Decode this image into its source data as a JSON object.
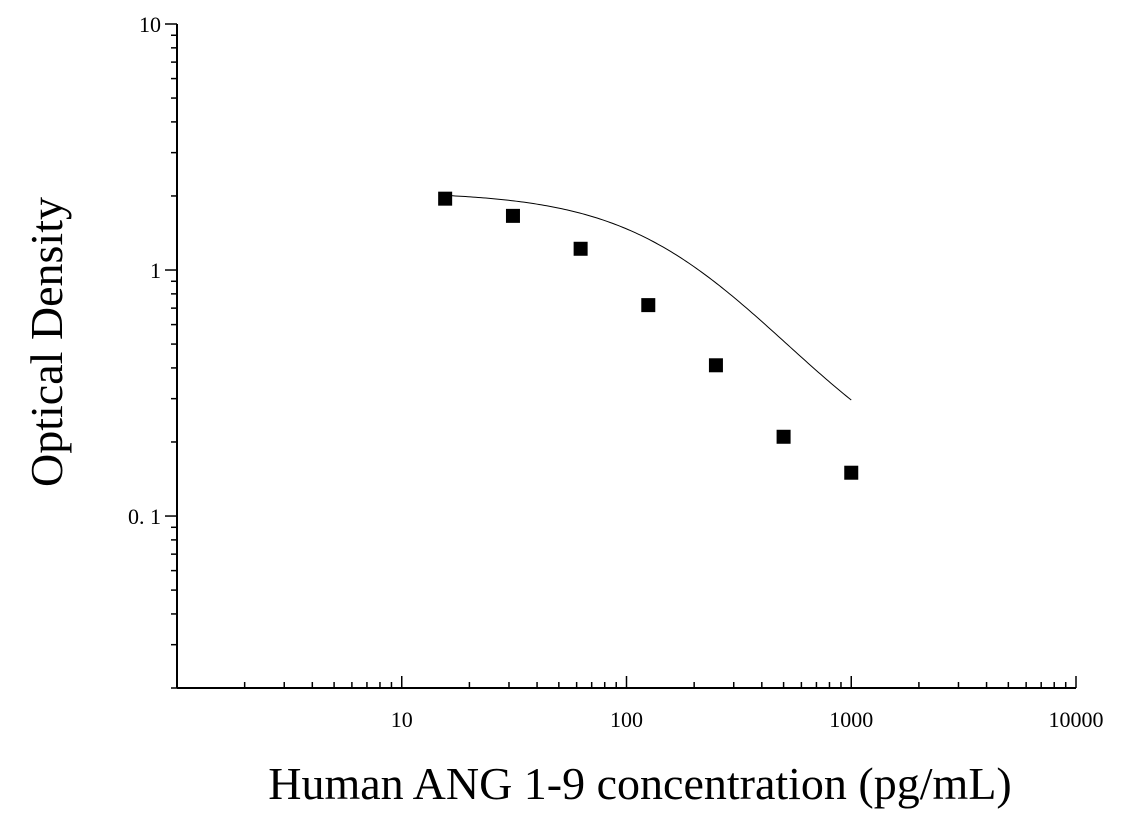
{
  "chart_data": {
    "type": "scatter",
    "title": "",
    "xlabel": "Human ANG 1-9 concentration (pg/mL)",
    "ylabel": "Optical Density",
    "xscale": "log",
    "yscale": "log",
    "xlim": [
      1,
      10000
    ],
    "ylim": [
      0.02,
      10
    ],
    "x_tick_labels": [
      "10",
      "100",
      "1000",
      "10000"
    ],
    "x_tick_values": [
      10,
      100,
      1000,
      10000
    ],
    "y_tick_labels": [
      "10",
      "1",
      "0. 1"
    ],
    "y_tick_values": [
      10,
      1,
      0.1
    ],
    "grid": false,
    "legend": "none",
    "marker": "square",
    "series": [
      {
        "x": [
          15.6,
          31.25,
          62.5,
          125,
          250,
          500,
          1000
        ],
        "y": [
          1.95,
          1.66,
          1.22,
          0.72,
          0.41,
          0.21,
          0.15
        ]
      }
    ],
    "fit_curve": {
      "type": "4PL",
      "A": 2.08,
      "D": 0.12,
      "C": 180,
      "B": 1.35
    },
    "colors": {
      "axis": "#000000",
      "marker": "#000000",
      "curve": "#000000"
    }
  }
}
